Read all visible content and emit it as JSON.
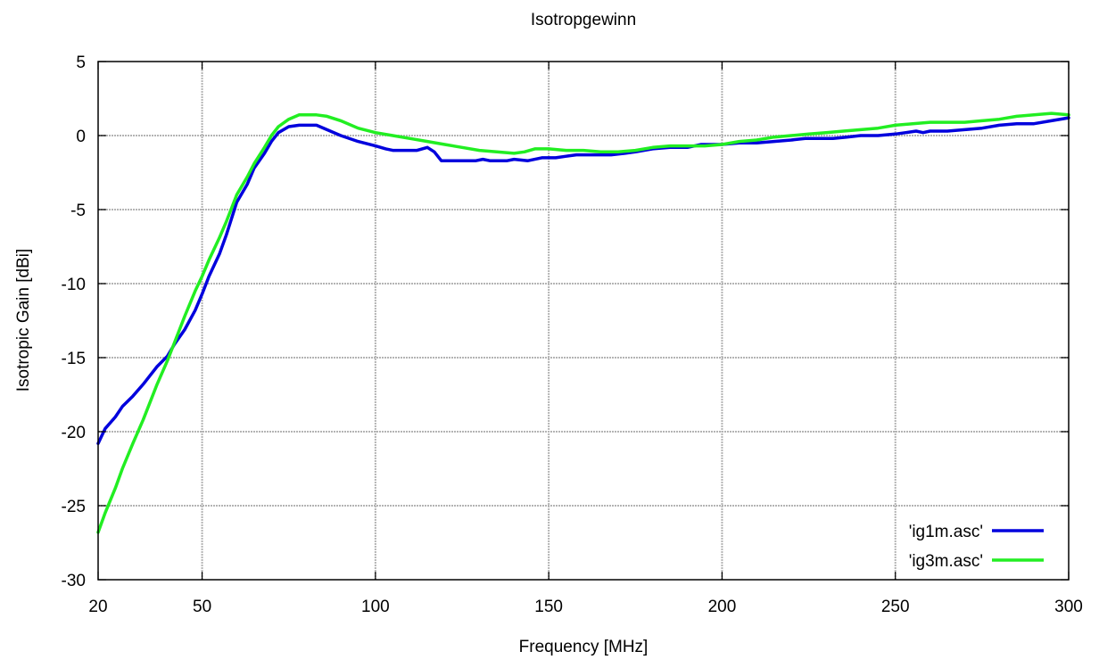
{
  "chart_data": {
    "type": "line",
    "title": "Isotropgewinn",
    "xlabel": "Frequency [MHz]",
    "ylabel": "Isotropic Gain [dBi]",
    "xlim": [
      20,
      300
    ],
    "ylim": [
      -30,
      5
    ],
    "x_ticks": [
      20,
      50,
      100,
      150,
      200,
      250,
      300
    ],
    "y_ticks": [
      5,
      0,
      -5,
      -10,
      -15,
      -20,
      -25,
      -30
    ],
    "grid": true,
    "legend_position": "bottom-right",
    "series": [
      {
        "name": "'ig1m.asc'",
        "color": "#0000dd",
        "points": [
          [
            20,
            -20.8
          ],
          [
            22,
            -19.8
          ],
          [
            25,
            -19.0
          ],
          [
            27,
            -18.3
          ],
          [
            30,
            -17.6
          ],
          [
            33,
            -16.8
          ],
          [
            35,
            -16.2
          ],
          [
            37,
            -15.6
          ],
          [
            40,
            -14.9
          ],
          [
            42,
            -14.1
          ],
          [
            45,
            -13.1
          ],
          [
            48,
            -11.8
          ],
          [
            50,
            -10.7
          ],
          [
            52,
            -9.5
          ],
          [
            55,
            -8.0
          ],
          [
            57,
            -6.7
          ],
          [
            60,
            -4.5
          ],
          [
            63,
            -3.3
          ],
          [
            65,
            -2.2
          ],
          [
            68,
            -1.2
          ],
          [
            70,
            -0.4
          ],
          [
            72,
            0.2
          ],
          [
            75,
            0.6
          ],
          [
            78,
            0.7
          ],
          [
            80,
            0.7
          ],
          [
            83,
            0.7
          ],
          [
            86,
            0.4
          ],
          [
            90,
            0.0
          ],
          [
            95,
            -0.4
          ],
          [
            100,
            -0.7
          ],
          [
            103,
            -0.9
          ],
          [
            105,
            -1.0
          ],
          [
            108,
            -1.0
          ],
          [
            110,
            -1.0
          ],
          [
            112,
            -1.0
          ],
          [
            115,
            -0.8
          ],
          [
            117,
            -1.1
          ],
          [
            119,
            -1.7
          ],
          [
            122,
            -1.7
          ],
          [
            126,
            -1.7
          ],
          [
            129,
            -1.7
          ],
          [
            131,
            -1.6
          ],
          [
            133,
            -1.7
          ],
          [
            138,
            -1.7
          ],
          [
            140,
            -1.6
          ],
          [
            144,
            -1.7
          ],
          [
            148,
            -1.5
          ],
          [
            152,
            -1.5
          ],
          [
            155,
            -1.4
          ],
          [
            158,
            -1.3
          ],
          [
            162,
            -1.3
          ],
          [
            165,
            -1.3
          ],
          [
            168,
            -1.3
          ],
          [
            172,
            -1.2
          ],
          [
            175,
            -1.1
          ],
          [
            180,
            -0.9
          ],
          [
            185,
            -0.8
          ],
          [
            190,
            -0.8
          ],
          [
            194,
            -0.6
          ],
          [
            200,
            -0.6
          ],
          [
            205,
            -0.5
          ],
          [
            210,
            -0.5
          ],
          [
            215,
            -0.4
          ],
          [
            220,
            -0.3
          ],
          [
            224,
            -0.2
          ],
          [
            228,
            -0.2
          ],
          [
            232,
            -0.2
          ],
          [
            236,
            -0.1
          ],
          [
            240,
            0.0
          ],
          [
            245,
            0.0
          ],
          [
            250,
            0.1
          ],
          [
            253,
            0.2
          ],
          [
            256,
            0.3
          ],
          [
            258,
            0.2
          ],
          [
            260,
            0.3
          ],
          [
            265,
            0.3
          ],
          [
            270,
            0.4
          ],
          [
            275,
            0.5
          ],
          [
            280,
            0.7
          ],
          [
            285,
            0.8
          ],
          [
            290,
            0.8
          ],
          [
            295,
            1.0
          ],
          [
            300,
            1.2
          ]
        ]
      },
      {
        "name": "'ig3m.asc'",
        "color": "#22ee22",
        "points": [
          [
            20,
            -26.8
          ],
          [
            22,
            -25.5
          ],
          [
            25,
            -23.8
          ],
          [
            27,
            -22.5
          ],
          [
            30,
            -20.8
          ],
          [
            33,
            -19.2
          ],
          [
            35,
            -18.0
          ],
          [
            37,
            -16.8
          ],
          [
            40,
            -15.2
          ],
          [
            42,
            -14.0
          ],
          [
            45,
            -12.2
          ],
          [
            48,
            -10.5
          ],
          [
            50,
            -9.5
          ],
          [
            52,
            -8.4
          ],
          [
            55,
            -6.9
          ],
          [
            57,
            -5.8
          ],
          [
            60,
            -4.0
          ],
          [
            63,
            -2.8
          ],
          [
            65,
            -1.9
          ],
          [
            68,
            -0.8
          ],
          [
            70,
            0.0
          ],
          [
            72,
            0.6
          ],
          [
            75,
            1.1
          ],
          [
            78,
            1.4
          ],
          [
            80,
            1.4
          ],
          [
            83,
            1.4
          ],
          [
            86,
            1.3
          ],
          [
            90,
            1.0
          ],
          [
            95,
            0.5
          ],
          [
            100,
            0.2
          ],
          [
            105,
            0.0
          ],
          [
            110,
            -0.2
          ],
          [
            115,
            -0.4
          ],
          [
            120,
            -0.6
          ],
          [
            125,
            -0.8
          ],
          [
            130,
            -1.0
          ],
          [
            135,
            -1.1
          ],
          [
            140,
            -1.2
          ],
          [
            143,
            -1.1
          ],
          [
            146,
            -0.9
          ],
          [
            150,
            -0.9
          ],
          [
            155,
            -1.0
          ],
          [
            160,
            -1.0
          ],
          [
            165,
            -1.1
          ],
          [
            170,
            -1.1
          ],
          [
            175,
            -1.0
          ],
          [
            180,
            -0.8
          ],
          [
            185,
            -0.7
          ],
          [
            190,
            -0.7
          ],
          [
            195,
            -0.7
          ],
          [
            200,
            -0.6
          ],
          [
            205,
            -0.4
          ],
          [
            210,
            -0.3
          ],
          [
            215,
            -0.1
          ],
          [
            220,
            0.0
          ],
          [
            225,
            0.1
          ],
          [
            230,
            0.2
          ],
          [
            235,
            0.3
          ],
          [
            240,
            0.4
          ],
          [
            245,
            0.5
          ],
          [
            250,
            0.7
          ],
          [
            255,
            0.8
          ],
          [
            260,
            0.9
          ],
          [
            265,
            0.9
          ],
          [
            270,
            0.9
          ],
          [
            275,
            1.0
          ],
          [
            280,
            1.1
          ],
          [
            285,
            1.3
          ],
          [
            290,
            1.4
          ],
          [
            295,
            1.5
          ],
          [
            300,
            1.4
          ]
        ]
      }
    ]
  }
}
